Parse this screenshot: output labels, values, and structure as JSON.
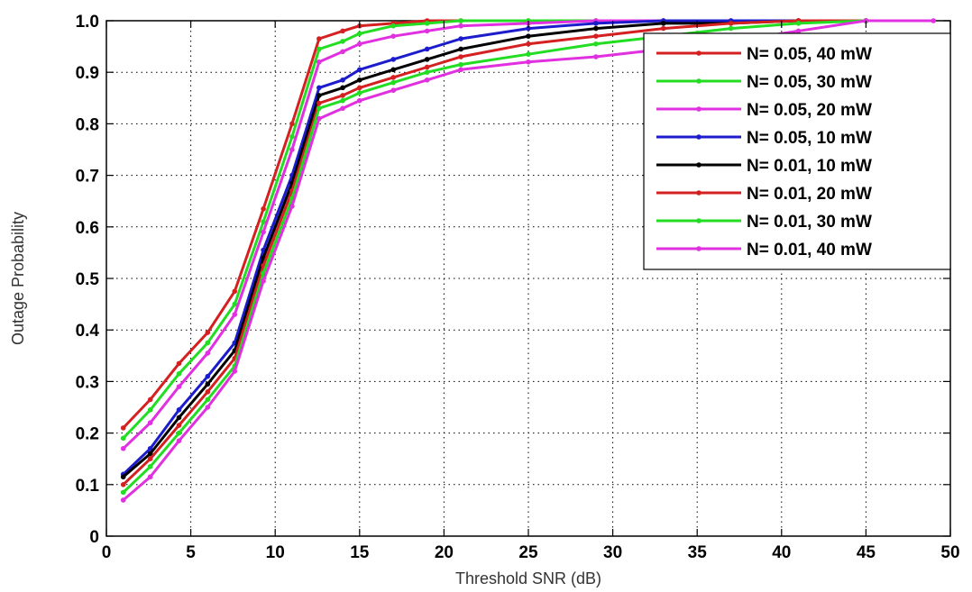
{
  "chart_data": {
    "type": "line",
    "xlabel": "Threshold SNR (dB)",
    "ylabel": "Outage Probability",
    "xlim": [
      0,
      50
    ],
    "ylim": [
      0,
      1
    ],
    "xticks": [
      0,
      5,
      10,
      15,
      20,
      25,
      30,
      35,
      40,
      45,
      50
    ],
    "yticks": [
      0,
      0.1,
      0.2,
      0.3,
      0.4,
      0.5,
      0.6,
      0.7,
      0.8,
      0.9,
      1.0
    ],
    "xtick_labels": [
      "0",
      "5",
      "10",
      "15",
      "20",
      "25",
      "30",
      "35",
      "40",
      "45",
      "50"
    ],
    "ytick_labels": [
      "0",
      "0.1",
      "0.2",
      "0.3",
      "0.4",
      "0.5",
      "0.6",
      "0.7",
      "0.8",
      "0.9",
      "1.0"
    ],
    "grid": true,
    "legend_position": "top-right",
    "series": [
      {
        "name": "N= 0.05, 40 mW",
        "color": "#d42020",
        "x": [
          1,
          2.6,
          4.3,
          6,
          7.6,
          9.3,
          11,
          12.6,
          14,
          15,
          17,
          19,
          21,
          25,
          29,
          33,
          37,
          41,
          45
        ],
        "y": [
          0.21,
          0.265,
          0.335,
          0.395,
          0.475,
          0.635,
          0.8,
          0.965,
          0.98,
          0.99,
          0.995,
          1.0,
          1.0,
          1.0,
          1.0,
          1.0,
          1.0,
          1.0,
          1.0
        ]
      },
      {
        "name": "N= 0.05, 30 mW",
        "color": "#22dd22",
        "x": [
          1,
          2.6,
          4.3,
          6,
          7.6,
          9.3,
          11,
          12.6,
          14,
          15,
          17,
          19,
          21,
          25,
          29,
          33,
          37,
          41,
          45
        ],
        "y": [
          0.19,
          0.245,
          0.315,
          0.375,
          0.45,
          0.61,
          0.775,
          0.945,
          0.96,
          0.975,
          0.99,
          0.995,
          1.0,
          1.0,
          1.0,
          1.0,
          1.0,
          1.0,
          1.0
        ]
      },
      {
        "name": "N= 0.05, 20 mW",
        "color": "#e030e0",
        "x": [
          1,
          2.6,
          4.3,
          6,
          7.6,
          9.3,
          11,
          12.6,
          14,
          15,
          17,
          19,
          21,
          25,
          29,
          33,
          37,
          41,
          45
        ],
        "y": [
          0.17,
          0.22,
          0.29,
          0.355,
          0.43,
          0.59,
          0.75,
          0.92,
          0.94,
          0.955,
          0.97,
          0.98,
          0.99,
          0.995,
          1.0,
          1.0,
          1.0,
          1.0,
          1.0
        ]
      },
      {
        "name": "N= 0.05, 10 mW",
        "color": "#1c1ccc",
        "x": [
          1,
          2.6,
          4.3,
          6,
          7.6,
          9.3,
          11,
          12.6,
          14,
          15,
          17,
          19,
          21,
          25,
          29,
          33,
          37,
          41,
          45
        ],
        "y": [
          0.12,
          0.17,
          0.245,
          0.31,
          0.375,
          0.555,
          0.7,
          0.87,
          0.885,
          0.905,
          0.925,
          0.945,
          0.965,
          0.985,
          0.995,
          1.0,
          1.0,
          1.0,
          1.0
        ]
      },
      {
        "name": "N= 0.01, 10 mW",
        "color": "#000000",
        "x": [
          1,
          2.6,
          4.3,
          6,
          7.6,
          9.3,
          11,
          12.6,
          14,
          15,
          17,
          19,
          21,
          25,
          29,
          33,
          37,
          41,
          45
        ],
        "y": [
          0.115,
          0.16,
          0.23,
          0.295,
          0.36,
          0.54,
          0.685,
          0.855,
          0.87,
          0.885,
          0.905,
          0.925,
          0.945,
          0.97,
          0.985,
          0.995,
          0.995,
          1.0,
          1.0
        ]
      },
      {
        "name": "N= 0.01, 20 mW",
        "color": "#d42020",
        "x": [
          1,
          2.6,
          4.3,
          6,
          7.6,
          9.3,
          11,
          12.6,
          14,
          15,
          17,
          19,
          21,
          25,
          29,
          33,
          37,
          41,
          45
        ],
        "y": [
          0.1,
          0.15,
          0.215,
          0.28,
          0.345,
          0.525,
          0.67,
          0.84,
          0.855,
          0.87,
          0.89,
          0.91,
          0.93,
          0.955,
          0.97,
          0.985,
          0.995,
          1.0,
          1.0
        ]
      },
      {
        "name": "N= 0.01, 30 mW",
        "color": "#22dd22",
        "x": [
          1,
          2.6,
          4.3,
          6,
          7.6,
          9.3,
          11,
          12.6,
          14,
          15,
          17,
          19,
          21,
          25,
          29,
          33,
          37,
          41,
          45
        ],
        "y": [
          0.085,
          0.135,
          0.2,
          0.265,
          0.33,
          0.51,
          0.655,
          0.83,
          0.845,
          0.86,
          0.88,
          0.9,
          0.915,
          0.935,
          0.955,
          0.97,
          0.985,
          0.995,
          1.0
        ]
      },
      {
        "name": "N= 0.01, 40 mW",
        "color": "#e030e0",
        "x": [
          1,
          2.6,
          4.3,
          6,
          7.6,
          9.3,
          11,
          12.6,
          14,
          15,
          17,
          19,
          21,
          25,
          29,
          33,
          37,
          41,
          45,
          49
        ],
        "y": [
          0.07,
          0.115,
          0.185,
          0.25,
          0.32,
          0.495,
          0.64,
          0.81,
          0.83,
          0.845,
          0.865,
          0.885,
          0.905,
          0.92,
          0.93,
          0.945,
          0.96,
          0.98,
          1.0,
          1.0
        ]
      }
    ]
  }
}
